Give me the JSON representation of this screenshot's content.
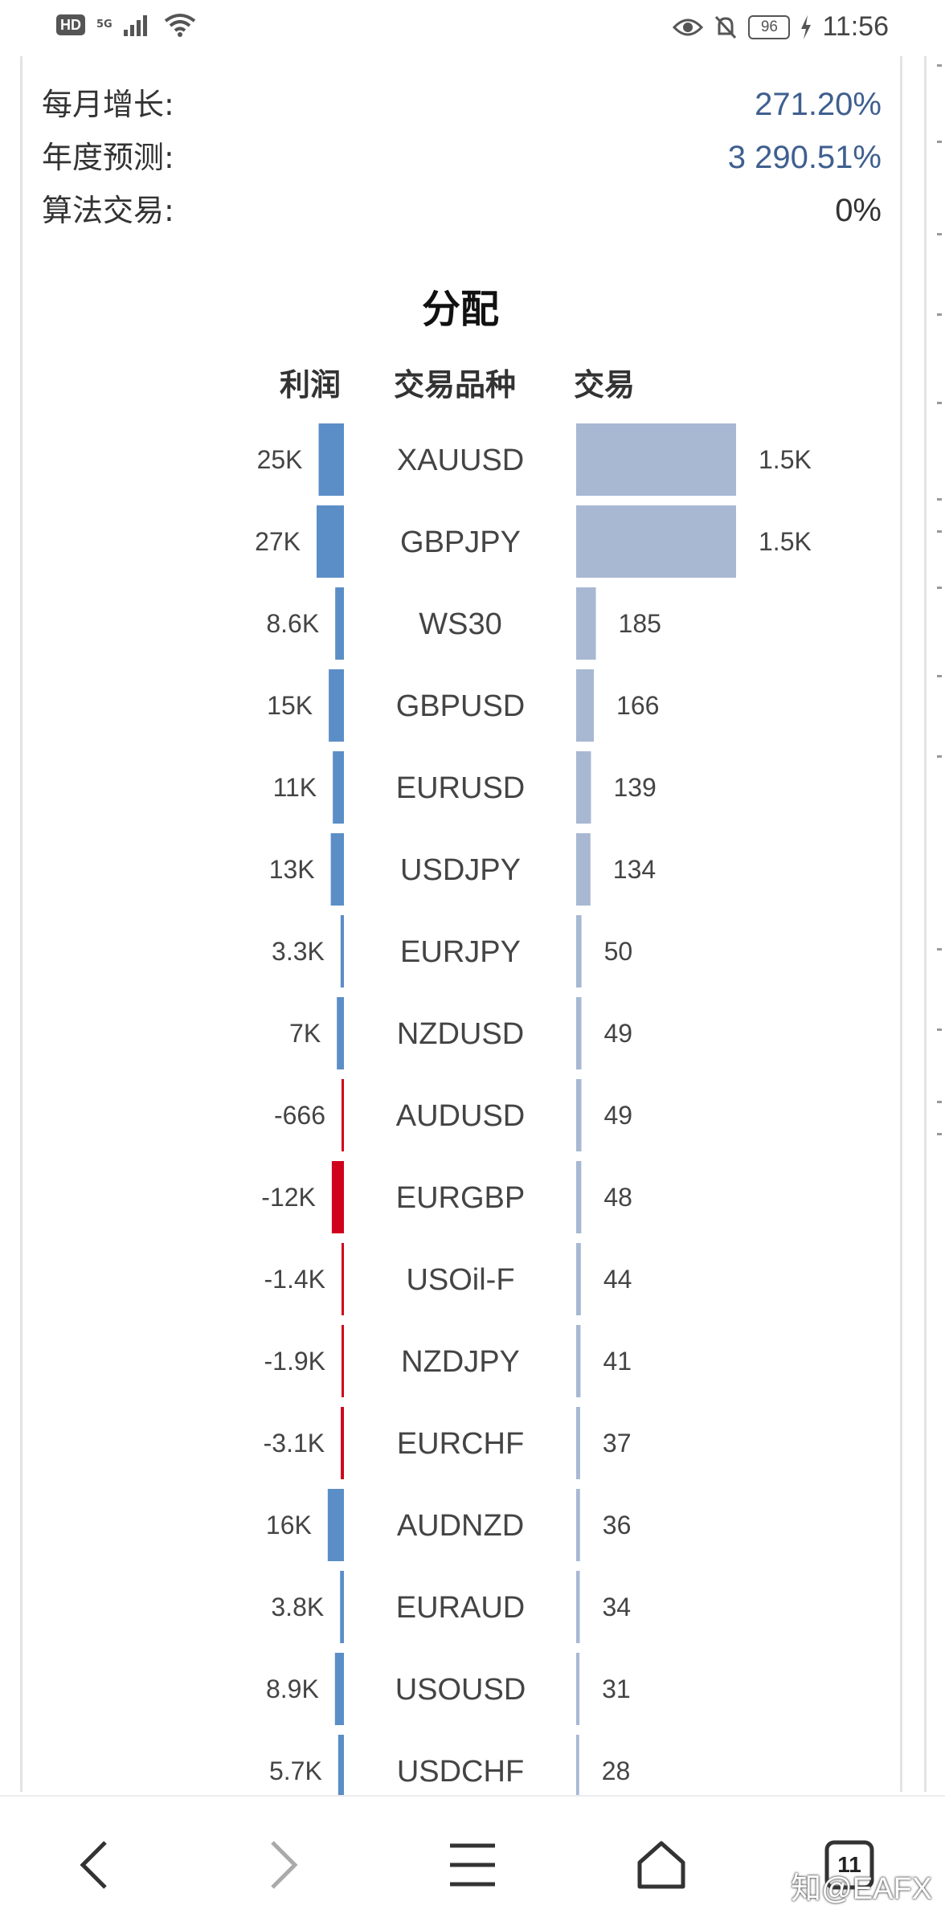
{
  "status_bar": {
    "hd": "HD",
    "network": "5G",
    "battery": "96",
    "time": "11:56"
  },
  "stats": [
    {
      "label": "每月增长:",
      "value": "271.20%",
      "color": "#3f5f8f"
    },
    {
      "label": "年度预测:",
      "value": "3 290.51%",
      "color": "#3f5f8f"
    },
    {
      "label": "算法交易:",
      "value": "0%",
      "color": "#333333"
    }
  ],
  "allocation": {
    "title": "分配",
    "headers": {
      "profit": "利润",
      "symbol": "交易品种",
      "trades": "交易"
    }
  },
  "chart_data": {
    "type": "bar",
    "title": "分配",
    "categories": [
      "XAUUSD",
      "GBPJPY",
      "WS30",
      "GBPUSD",
      "EURUSD",
      "USDJPY",
      "EURJPY",
      "NZDUSD",
      "AUDUSD",
      "EURGBP",
      "USOil-F",
      "NZDJPY",
      "EURCHF",
      "AUDNZD",
      "EURAUD",
      "USOUSD",
      "USDCHF"
    ],
    "series": [
      {
        "name": "利润",
        "values": [
          25000,
          27000,
          8600,
          15000,
          11000,
          13000,
          3300,
          7000,
          -666,
          -12000,
          -1400,
          -1900,
          -3100,
          16000,
          3800,
          8900,
          5700
        ],
        "labels": [
          "25K",
          "27K",
          "8.6K",
          "15K",
          "11K",
          "13K",
          "3.3K",
          "7K",
          "-666",
          "-12K",
          "-1.4K",
          "-1.9K",
          "-3.1K",
          "16K",
          "3.8K",
          "8.9K",
          "5.7K"
        ],
        "positive_color": "#5b8ec7",
        "negative_color": "#d0021b"
      },
      {
        "name": "交易",
        "values": [
          1500,
          1500,
          185,
          166,
          139,
          134,
          50,
          49,
          49,
          48,
          44,
          41,
          37,
          36,
          34,
          31,
          28
        ],
        "labels": [
          "1.5K",
          "1.5K",
          "185",
          "166",
          "139",
          "134",
          "50",
          "49",
          "49",
          "48",
          "44",
          "41",
          "37",
          "36",
          "34",
          "31",
          "28"
        ],
        "color": "#a8b8d3"
      }
    ]
  },
  "bottom_nav": {
    "back": "back-arrow",
    "forward": "forward-arrow",
    "menu": "menu",
    "home": "home",
    "tabs_count": "11"
  },
  "watermark": "知@EAFX"
}
